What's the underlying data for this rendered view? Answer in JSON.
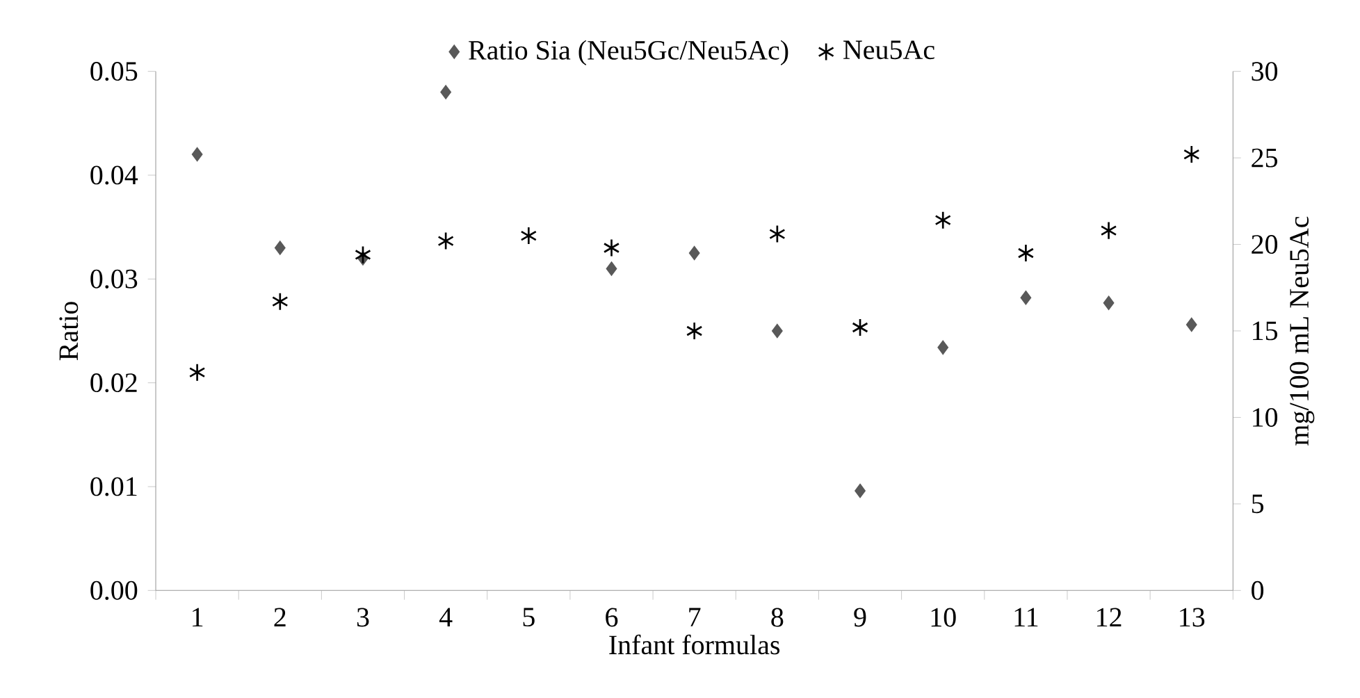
{
  "chart_data": {
    "type": "scatter",
    "xlabel": "Infant formulas",
    "ylabel": "Ratio",
    "y2label": "mg/100 mL Neu5Ac",
    "categories": [
      "1",
      "2",
      "3",
      "4",
      "5",
      "6",
      "7",
      "8",
      "9",
      "10",
      "11",
      "12",
      "13"
    ],
    "series": [
      {
        "name": "Ratio Sia (Neu5Gc/Neu5Ac)",
        "color": "#595959",
        "marker": "diamond",
        "values": [
          0.042,
          0.033,
          0.032,
          0.048,
          null,
          0.031,
          0.0325,
          0.025,
          0.0096,
          0.0234,
          0.0282,
          0.0277,
          0.0256
        ]
      },
      {
        "name": "Neu5Ac",
        "color": "#000000",
        "marker": "cross",
        "axis": "y2",
        "values": [
          12.6,
          16.7,
          19.4,
          20.2,
          20.5,
          19.8,
          15.0,
          20.6,
          15.2,
          21.4,
          19.5,
          20.8,
          25.2
        ]
      }
    ],
    "ylim": [
      0,
      0.05
    ],
    "yticks": [
      {
        "value": 0,
        "label": "0.00"
      },
      {
        "value": 0.01,
        "label": "0.01"
      },
      {
        "value": 0.02,
        "label": "0.02"
      },
      {
        "value": 0.03,
        "label": "0.03"
      },
      {
        "value": 0.04,
        "label": "0.04"
      },
      {
        "value": 0.05,
        "label": "0.05"
      }
    ],
    "y2lim": [
      0,
      30
    ],
    "y2ticks": [
      0,
      5,
      10,
      15,
      20,
      25,
      30
    ],
    "grid": false,
    "legend": "top"
  }
}
